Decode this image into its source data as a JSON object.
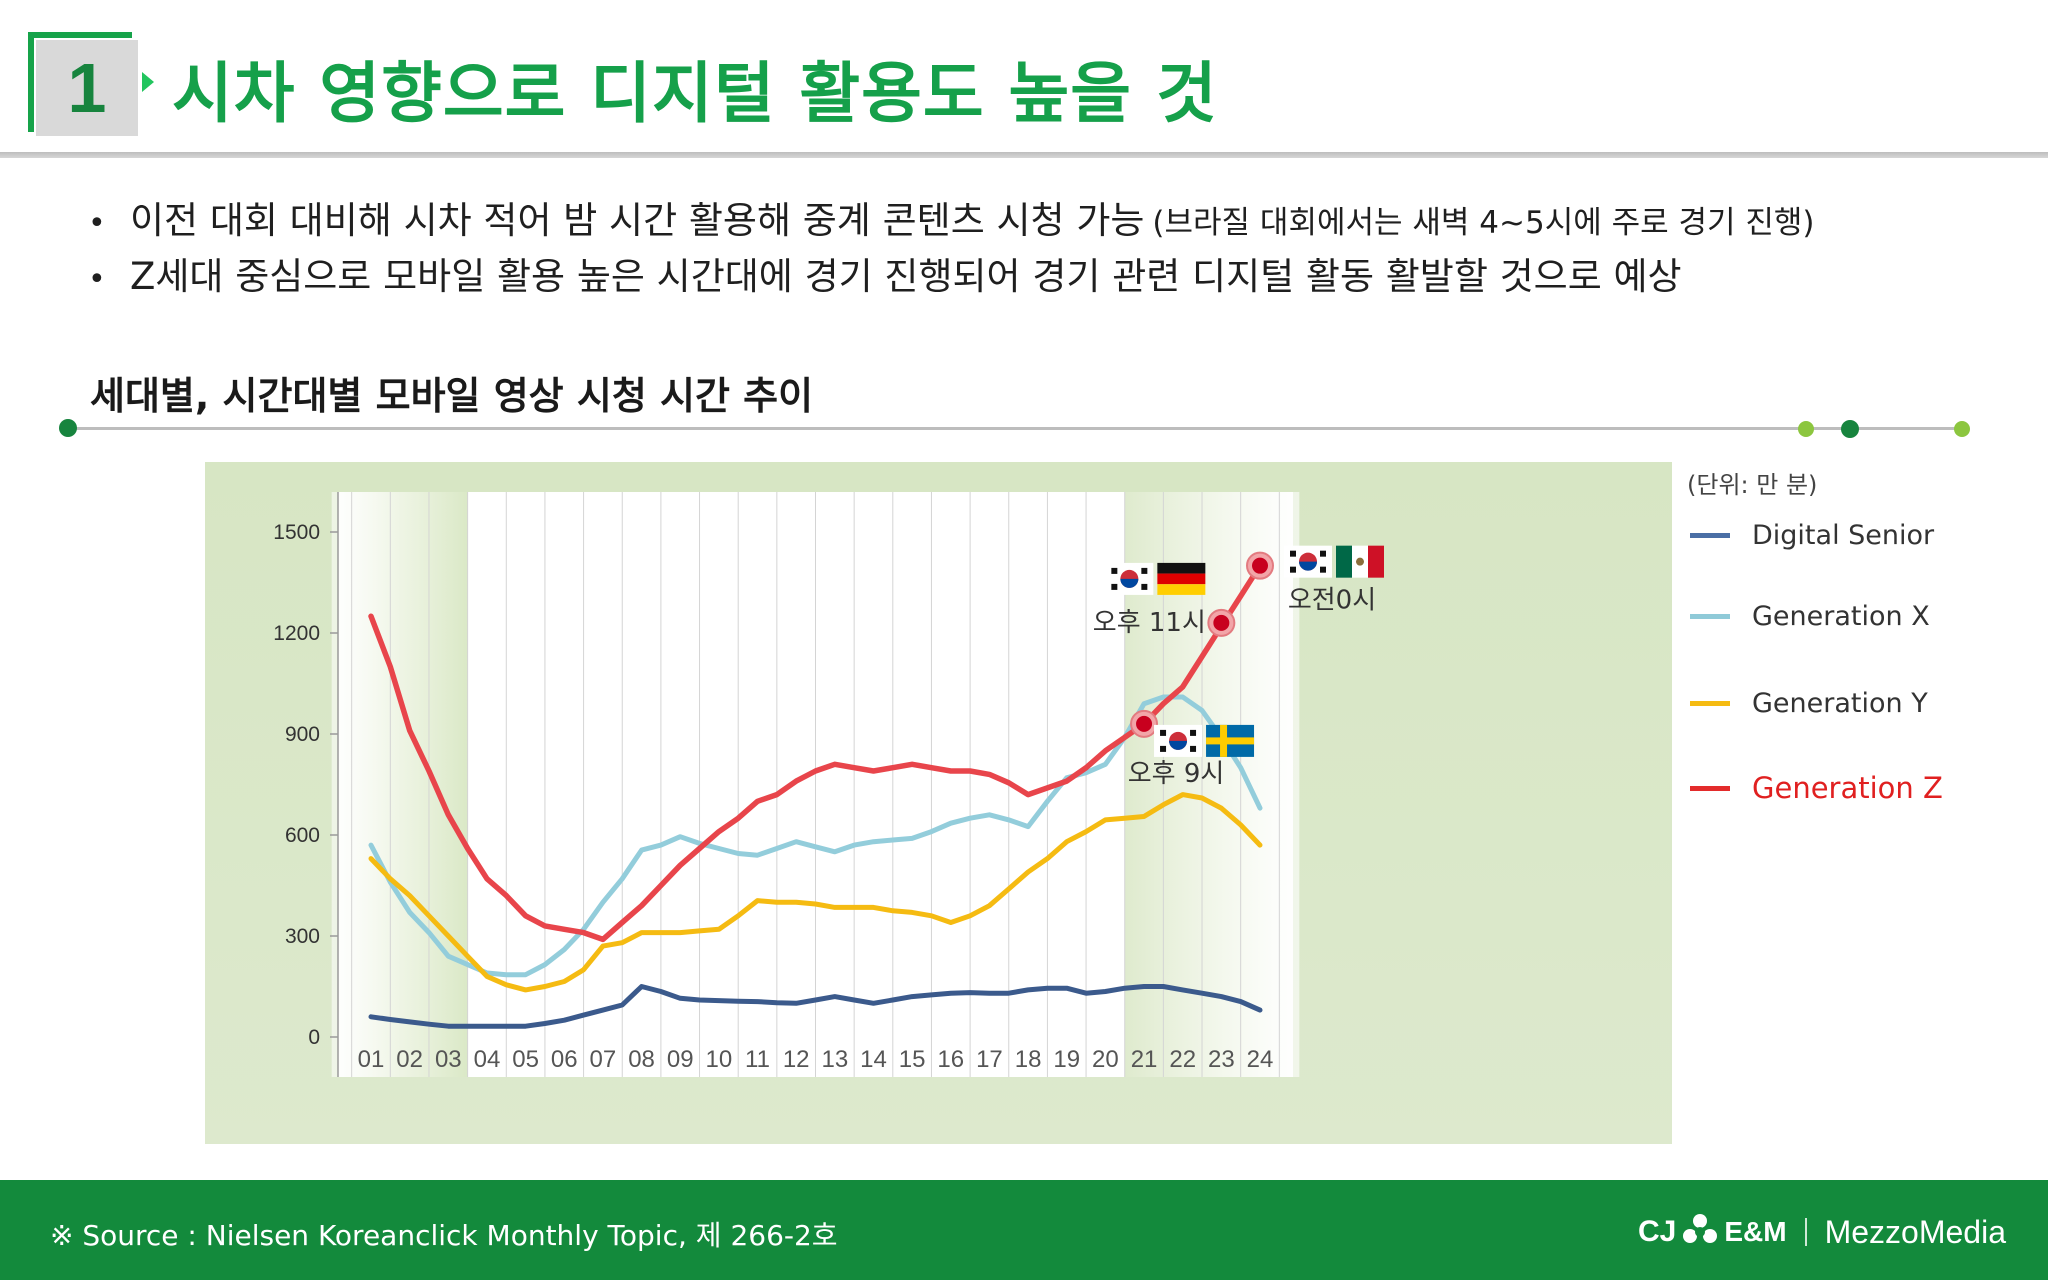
{
  "header": {
    "number": "1",
    "title": "시차 영향으로 디지털 활용도 높을 것"
  },
  "bullets": [
    {
      "text": "이전 대회 대비해 시차 적어 밤 시간 활용해 중계 콘텐츠 시청 가능",
      "note": "(브라질 대회에서는 새벽 4~5시에 주로 경기 진행)"
    },
    {
      "text": "Z세대 중심으로 모바일 활용 높은 시간대에 경기 진행되어 경기 관련 디지털 활동 활발할 것으로 예상",
      "note": ""
    }
  ],
  "section_title": "세대별, 시간대별 모바일 영상 시청 시간 추이",
  "unit_label": "(단위: 만 분)",
  "legend": [
    {
      "name": "Digital Senior",
      "color": "#4a6fa5"
    },
    {
      "name": "Generation X",
      "color": "#8fcad8"
    },
    {
      "name": "Generation Y",
      "color": "#f5bb12"
    },
    {
      "name": "Generation Z",
      "color": "#e8383d"
    }
  ],
  "chart_data": {
    "type": "line",
    "title": "세대별, 시간대별 모바일 영상 시청 시간 추이",
    "xlabel": "",
    "ylabel": "",
    "y_ticks": [
      "0",
      "300",
      "600",
      "900",
      "1200",
      "1500"
    ],
    "ylim": [
      0,
      1500
    ],
    "categories": [
      "01",
      "02",
      "03",
      "04",
      "05",
      "06",
      "07",
      "08",
      "09",
      "10",
      "11",
      "12",
      "13",
      "14",
      "15",
      "16",
      "17",
      "18",
      "19",
      "20",
      "21",
      "22",
      "23",
      "24"
    ],
    "x": [
      1,
      1.5,
      2,
      2.5,
      3,
      3.5,
      4,
      4.5,
      5,
      5.5,
      6,
      6.5,
      7,
      7.5,
      8,
      8.5,
      9,
      9.5,
      10,
      10.5,
      11,
      11.5,
      12,
      12.5,
      13,
      13.5,
      14,
      14.5,
      15,
      15.5,
      16,
      16.5,
      17,
      17.5,
      18,
      18.5,
      19,
      19.5,
      20,
      20.5,
      21,
      21.5,
      22,
      22.5,
      23,
      23.5,
      24
    ],
    "series": [
      {
        "name": "Digital Senior",
        "color": "#3b5a8c",
        "values": [
          60,
          52,
          45,
          38,
          32,
          32,
          32,
          32,
          32,
          40,
          50,
          65,
          80,
          95,
          150,
          135,
          115,
          110,
          108,
          106,
          105,
          102,
          100,
          110,
          120,
          110,
          100,
          110,
          120,
          125,
          130,
          132,
          130,
          130,
          140,
          145,
          145,
          130,
          135,
          145,
          150,
          150,
          140,
          130,
          120,
          105,
          80
        ]
      },
      {
        "name": "Generation X",
        "color": "#93cddb",
        "values": [
          570,
          460,
          370,
          310,
          240,
          215,
          190,
          185,
          185,
          215,
          260,
          320,
          400,
          470,
          555,
          570,
          595,
          575,
          560,
          545,
          540,
          560,
          580,
          565,
          550,
          570,
          580,
          585,
          590,
          610,
          635,
          650,
          660,
          645,
          625,
          700,
          770,
          785,
          810,
          890,
          990,
          1010,
          1010,
          970,
          890,
          800,
          680
        ]
      },
      {
        "name": "Generation Y",
        "color": "#f5bb12",
        "values": [
          530,
          470,
          420,
          360,
          300,
          240,
          180,
          155,
          140,
          150,
          165,
          200,
          270,
          280,
          310,
          310,
          310,
          315,
          320,
          360,
          405,
          400,
          400,
          395,
          385,
          385,
          385,
          375,
          370,
          360,
          340,
          360,
          390,
          440,
          490,
          530,
          580,
          610,
          645,
          650,
          655,
          690,
          720,
          710,
          680,
          630,
          570
        ]
      },
      {
        "name": "Generation Z",
        "color": "#e8454b",
        "values": [
          1250,
          1100,
          910,
          790,
          660,
          560,
          470,
          420,
          360,
          330,
          320,
          310,
          290,
          340,
          390,
          450,
          510,
          560,
          610,
          650,
          700,
          720,
          760,
          790,
          810,
          800,
          790,
          800,
          810,
          800,
          790,
          790,
          780,
          755,
          720,
          740,
          760,
          800,
          850,
          890,
          930,
          990,
          1040,
          1130,
          1220,
          1310,
          1400
        ]
      }
    ],
    "highlight_bands": [
      [
        "01",
        "03"
      ],
      [
        "21",
        "24"
      ]
    ],
    "annotations": [
      {
        "label": "오후 9시",
        "x": 21,
        "y": 930,
        "flags": [
          "KR",
          "SE"
        ]
      },
      {
        "label": "오후 11시",
        "x": 23,
        "y": 1230,
        "flags": [
          "KR",
          "DE"
        ]
      },
      {
        "label": "오전0시",
        "x": 24,
        "y": 1400,
        "flags": [
          "KR",
          "MX"
        ]
      }
    ]
  },
  "footer": {
    "source": "※ Source : Nielsen Koreanclick Monthly Topic, 제 266-2호",
    "logo_cj": "CJ",
    "logo_em": "E&M",
    "logo_mezzo": "MezzoMedia"
  },
  "colors": {
    "brand_green": "#15a04a",
    "footer_green": "#138a3c",
    "highlight_red": "#e8383d"
  }
}
